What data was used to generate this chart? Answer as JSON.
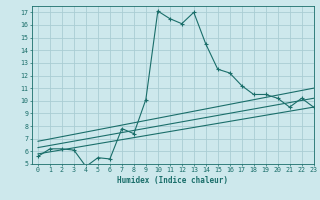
{
  "xlabel": "Humidex (Indice chaleur)",
  "background_color": "#cde8ec",
  "grid_color": "#aacdd3",
  "line_color": "#1a6e6a",
  "xlim": [
    -0.5,
    23
  ],
  "ylim": [
    5,
    17.5
  ],
  "xticks": [
    0,
    1,
    2,
    3,
    4,
    5,
    6,
    7,
    8,
    9,
    10,
    11,
    12,
    13,
    14,
    15,
    16,
    17,
    18,
    19,
    20,
    21,
    22,
    23
  ],
  "yticks": [
    5,
    6,
    7,
    8,
    9,
    10,
    11,
    12,
    13,
    14,
    15,
    16,
    17
  ],
  "line1_x": [
    0,
    1,
    2,
    3,
    4,
    5,
    6,
    7,
    8,
    9,
    10,
    11,
    12,
    13,
    14,
    15,
    16,
    17,
    18,
    19,
    20,
    21,
    22,
    23
  ],
  "line1_y": [
    5.6,
    6.2,
    6.2,
    6.1,
    4.8,
    5.5,
    5.4,
    7.8,
    7.4,
    10.1,
    17.1,
    16.5,
    16.1,
    17.0,
    14.5,
    12.5,
    12.2,
    11.2,
    10.5,
    10.5,
    10.2,
    9.5,
    10.2,
    9.5
  ],
  "line2_x": [
    0,
    23
  ],
  "line2_y": [
    5.8,
    9.5
  ],
  "line3_x": [
    0,
    23
  ],
  "line3_y": [
    6.3,
    10.2
  ],
  "line4_x": [
    0,
    23
  ],
  "line4_y": [
    6.8,
    11.0
  ]
}
